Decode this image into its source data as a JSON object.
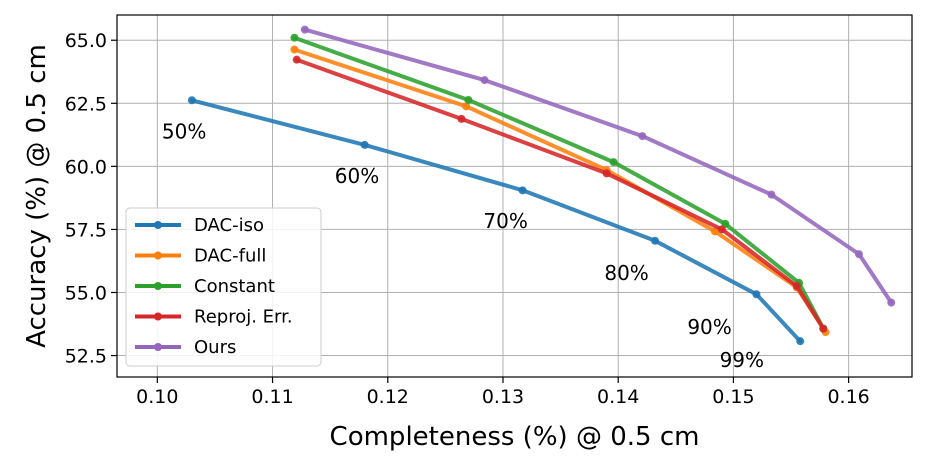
{
  "chart_data": {
    "type": "line",
    "xlabel": "Completeness (%) @ 0.5 cm",
    "ylabel": "Accuracy (%) @ 0.5 cm",
    "xlim": [
      0.0965,
      0.1655
    ],
    "ylim": [
      51.65,
      66.0
    ],
    "grid": true,
    "legend_position": "lower-left",
    "xticks": [
      0.1,
      0.11,
      0.12,
      0.13,
      0.14,
      0.15,
      0.16
    ],
    "xtick_labels": [
      "0.10",
      "0.11",
      "0.12",
      "0.13",
      "0.14",
      "0.15",
      "0.16"
    ],
    "yticks": [
      52.5,
      55.0,
      57.5,
      60.0,
      62.5,
      65.0
    ],
    "ytick_labels": [
      "52.5",
      "55.0",
      "57.5",
      "60.0",
      "62.5",
      "65.0"
    ],
    "series": [
      {
        "name": "DAC-iso",
        "color": "#1f77b4",
        "x": [
          0.103,
          0.118,
          0.1317,
          0.1432,
          0.152,
          0.1558
        ],
        "y": [
          62.62,
          60.85,
          59.05,
          57.05,
          54.93,
          53.07
        ]
      },
      {
        "name": "DAC-full",
        "color": "#ff7f0e",
        "x": [
          0.1119,
          0.1268,
          0.139,
          0.1484,
          0.1555,
          0.158
        ],
        "y": [
          64.63,
          62.38,
          59.85,
          57.42,
          55.2,
          53.43
        ]
      },
      {
        "name": "Constant",
        "color": "#2ca02c",
        "x": [
          0.1119,
          0.127,
          0.1396,
          0.1493,
          0.1557,
          0.1578
        ],
        "y": [
          65.1,
          62.63,
          60.17,
          57.72,
          55.38,
          53.57
        ]
      },
      {
        "name": "Reproj. Err.",
        "color": "#d62728",
        "x": [
          0.1121,
          0.1264,
          0.139,
          0.149,
          0.1555,
          0.1578
        ],
        "y": [
          64.23,
          61.88,
          59.72,
          57.5,
          55.25,
          53.57
        ]
      },
      {
        "name": "Ours",
        "color": "#9467bd",
        "x": [
          0.1128,
          0.1284,
          0.1421,
          0.1533,
          0.1609,
          0.1637
        ],
        "y": [
          65.42,
          63.42,
          61.2,
          58.88,
          56.52,
          54.6
        ]
      }
    ],
    "annotations": [
      {
        "text": "50%",
        "x": 0.1004,
        "y": 61.1
      },
      {
        "text": "60%",
        "x": 0.1154,
        "y": 59.35
      },
      {
        "text": "70%",
        "x": 0.1283,
        "y": 57.55
      },
      {
        "text": "80%",
        "x": 0.1388,
        "y": 55.5
      },
      {
        "text": "90%",
        "x": 0.146,
        "y": 53.35
      },
      {
        "text": "99%",
        "x": 0.1488,
        "y": 52.05
      }
    ]
  }
}
